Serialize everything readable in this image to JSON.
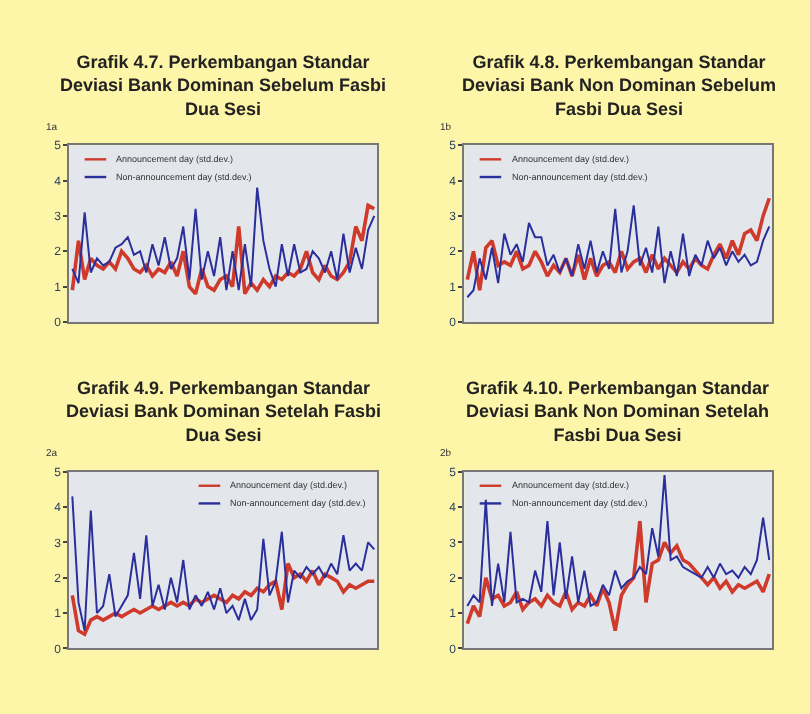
{
  "chart_data": [
    {
      "type": "line",
      "title": "Grafik 4.7. Perkembangan Standar Deviasi Bank Dominan Sebelum Fasbi Dua Sesi",
      "ylabel": "1a",
      "categories": [
        null,
        null,
        null,
        null,
        null,
        null,
        null,
        null,
        null,
        null,
        null,
        null,
        null,
        null,
        null,
        null,
        null,
        null,
        null,
        null,
        null,
        null,
        null,
        null,
        null,
        null,
        null,
        null,
        null,
        null,
        null,
        null,
        null,
        null,
        null,
        null,
        null,
        null,
        null,
        null,
        null,
        null,
        null,
        null,
        null,
        null,
        null,
        null,
        null,
        null
      ],
      "ylim": [
        0,
        5
      ],
      "yticks": [
        0,
        1,
        2,
        3,
        4,
        5
      ],
      "legend": "top left",
      "grid": false,
      "marker": "none",
      "series": [
        {
          "name": "Announcement day (std.dev.)",
          "color": "#d03a2a",
          "values": [
            0.9,
            2.3,
            1.2,
            1.8,
            1.6,
            1.5,
            1.7,
            1.5,
            2.0,
            1.8,
            1.5,
            1.4,
            1.6,
            1.3,
            1.5,
            1.4,
            1.7,
            1.3,
            2.0,
            1.0,
            0.8,
            1.5,
            1.0,
            0.9,
            1.2,
            1.3,
            1.0,
            2.7,
            0.8,
            1.1,
            0.9,
            1.2,
            1.0,
            1.3,
            1.2,
            1.4,
            1.3,
            1.5,
            2.0,
            1.4,
            1.2,
            1.6,
            1.3,
            1.2,
            1.4,
            1.7,
            2.7,
            2.3,
            3.3,
            3.2
          ]
        },
        {
          "name": "Non-announcement day (std.dev.)",
          "color": "#2b2f9c",
          "values": [
            1.5,
            1.1,
            3.1,
            1.4,
            1.8,
            1.6,
            1.7,
            2.1,
            2.2,
            2.4,
            1.9,
            2.0,
            1.4,
            2.2,
            1.6,
            2.4,
            1.5,
            1.8,
            2.7,
            1.2,
            3.2,
            1.2,
            2.0,
            1.3,
            2.4,
            0.9,
            2.0,
            0.9,
            2.2,
            1.0,
            3.8,
            2.3,
            1.5,
            1.0,
            2.2,
            1.3,
            2.2,
            1.4,
            1.5,
            2.0,
            1.8,
            1.4,
            2.0,
            1.2,
            2.5,
            1.4,
            2.1,
            1.5,
            2.6,
            3.0
          ]
        }
      ]
    },
    {
      "type": "line",
      "title": "Grafik 4.8. Perkembangan Standar Deviasi Bank Non Dominan Sebelum Fasbi Dua Sesi",
      "ylabel": "1b",
      "categories": [
        null,
        null,
        null,
        null,
        null,
        null,
        null,
        null,
        null,
        null,
        null,
        null,
        null,
        null,
        null,
        null,
        null,
        null,
        null,
        null,
        null,
        null,
        null,
        null,
        null,
        null,
        null,
        null,
        null,
        null,
        null,
        null,
        null,
        null,
        null,
        null,
        null,
        null,
        null,
        null,
        null,
        null,
        null,
        null,
        null,
        null,
        null,
        null,
        null,
        null
      ],
      "ylim": [
        0,
        5
      ],
      "yticks": [
        0,
        1,
        2,
        3,
        4,
        5
      ],
      "legend": "top left",
      "grid": false,
      "marker": "none",
      "series": [
        {
          "name": "Announcement day (std.dev.)",
          "color": "#d03a2a",
          "values": [
            1.2,
            2.0,
            0.9,
            2.1,
            2.3,
            1.6,
            1.7,
            1.6,
            2.0,
            1.5,
            1.6,
            2.0,
            1.7,
            1.3,
            1.6,
            1.4,
            1.8,
            1.3,
            1.9,
            1.2,
            1.8,
            1.3,
            1.6,
            1.7,
            1.4,
            2.0,
            1.5,
            1.7,
            1.8,
            1.4,
            1.9,
            1.5,
            1.8,
            1.6,
            1.4,
            1.7,
            1.5,
            1.8,
            1.6,
            1.5,
            1.9,
            2.2,
            1.8,
            2.3,
            1.9,
            2.5,
            2.6,
            2.3,
            3.0,
            3.5
          ]
        },
        {
          "name": "Non-announcement day (std.dev.)",
          "color": "#2b2f9c",
          "values": [
            0.7,
            0.9,
            1.8,
            1.2,
            2.1,
            1.1,
            2.5,
            1.9,
            2.2,
            1.7,
            2.8,
            2.4,
            2.4,
            1.6,
            1.9,
            1.4,
            1.8,
            1.3,
            2.2,
            1.5,
            2.3,
            1.4,
            2.0,
            1.5,
            3.2,
            1.4,
            2.0,
            3.3,
            1.6,
            2.1,
            1.4,
            2.7,
            1.1,
            2.0,
            1.3,
            2.5,
            1.3,
            1.9,
            1.6,
            2.3,
            1.8,
            2.1,
            1.6,
            2.0,
            1.7,
            1.9,
            1.6,
            1.7,
            2.3,
            2.7
          ]
        }
      ]
    },
    {
      "type": "line",
      "title": "Grafik 4.9. Perkembangan Standar Deviasi Bank Dominan Setelah Fasbi Dua Sesi",
      "ylabel": "2a",
      "categories": [
        null,
        null,
        null,
        null,
        null,
        null,
        null,
        null,
        null,
        null,
        null,
        null,
        null,
        null,
        null,
        null,
        null,
        null,
        null,
        null,
        null,
        null,
        null,
        null,
        null,
        null,
        null,
        null,
        null,
        null,
        null,
        null,
        null,
        null,
        null,
        null,
        null,
        null,
        null,
        null,
        null,
        null,
        null,
        null,
        null,
        null,
        null,
        null,
        null,
        null
      ],
      "ylim": [
        0,
        5
      ],
      "yticks": [
        0,
        1,
        2,
        3,
        4,
        5
      ],
      "legend": "top right",
      "grid": false,
      "marker": "none",
      "series": [
        {
          "name": "Announcement day (std.dev.)",
          "color": "#d03a2a",
          "values": [
            1.5,
            0.5,
            0.4,
            0.8,
            0.9,
            0.8,
            0.9,
            1.0,
            0.9,
            1.0,
            1.1,
            1.0,
            1.1,
            1.2,
            1.1,
            1.2,
            1.3,
            1.2,
            1.3,
            1.2,
            1.4,
            1.3,
            1.4,
            1.5,
            1.4,
            1.3,
            1.5,
            1.4,
            1.6,
            1.5,
            1.7,
            1.6,
            1.8,
            1.9,
            1.1,
            2.4,
            2.0,
            2.1,
            1.9,
            2.2,
            1.8,
            2.1,
            2.0,
            1.9,
            1.6,
            1.8,
            1.7,
            1.8,
            1.9,
            1.9
          ]
        },
        {
          "name": "Non-announcement day (std.dev.)",
          "color": "#2b2f9c",
          "values": [
            4.3,
            1.3,
            0.5,
            3.9,
            1.0,
            1.2,
            2.1,
            0.9,
            1.2,
            1.5,
            2.7,
            1.4,
            3.2,
            1.2,
            1.8,
            1.1,
            2.0,
            1.3,
            2.5,
            1.1,
            1.5,
            1.2,
            1.6,
            1.1,
            1.7,
            1.0,
            1.2,
            0.8,
            1.4,
            0.8,
            1.1,
            3.1,
            1.5,
            1.9,
            3.3,
            1.3,
            2.2,
            2.0,
            2.3,
            2.1,
            2.3,
            2.0,
            2.4,
            2.1,
            3.2,
            2.2,
            2.4,
            2.2,
            3.0,
            2.8
          ]
        }
      ]
    },
    {
      "type": "line",
      "title": "Grafik 4.10. Perkembangan Standar Deviasi Bank Non Dominan Setelah Fasbi Dua Sesi",
      "ylabel": "2b",
      "categories": [
        null,
        null,
        null,
        null,
        null,
        null,
        null,
        null,
        null,
        null,
        null,
        null,
        null,
        null,
        null,
        null,
        null,
        null,
        null,
        null,
        null,
        null,
        null,
        null,
        null,
        null,
        null,
        null,
        null,
        null,
        null,
        null,
        null,
        null,
        null,
        null,
        null,
        null,
        null,
        null,
        null,
        null,
        null,
        null,
        null,
        null,
        null,
        null,
        null,
        null
      ],
      "ylim": [
        0,
        5
      ],
      "yticks": [
        0,
        1,
        2,
        3,
        4,
        5
      ],
      "legend": "top left",
      "grid": false,
      "marker": "none",
      "series": [
        {
          "name": "Announcement day (std.dev.)",
          "color": "#d03a2a",
          "values": [
            0.7,
            1.2,
            0.9,
            2.0,
            1.4,
            1.5,
            1.2,
            1.3,
            1.6,
            1.1,
            1.3,
            1.4,
            1.2,
            1.5,
            1.3,
            1.2,
            1.6,
            1.1,
            1.3,
            1.2,
            1.5,
            1.2,
            1.7,
            1.3,
            0.5,
            1.5,
            1.8,
            2.0,
            3.6,
            1.3,
            2.4,
            2.5,
            3.0,
            2.7,
            2.9,
            2.5,
            2.4,
            2.2,
            2.0,
            1.8,
            2.0,
            1.7,
            1.9,
            1.6,
            1.8,
            1.7,
            1.8,
            1.9,
            1.6,
            2.1
          ]
        },
        {
          "name": "Non-announcement day (std.dev.)",
          "color": "#2b2f9c",
          "values": [
            1.2,
            1.5,
            1.3,
            4.2,
            1.2,
            2.4,
            1.3,
            3.3,
            1.3,
            1.4,
            1.3,
            2.2,
            1.6,
            3.6,
            1.5,
            3.0,
            1.4,
            2.6,
            1.3,
            2.2,
            1.2,
            1.3,
            1.8,
            1.5,
            2.2,
            1.7,
            1.9,
            2.0,
            2.3,
            2.1,
            3.4,
            2.6,
            4.9,
            2.5,
            2.6,
            2.3,
            2.2,
            2.1,
            2.0,
            2.3,
            2.0,
            2.4,
            2.1,
            2.2,
            2.0,
            2.3,
            2.1,
            2.5,
            3.7,
            2.5
          ]
        }
      ]
    }
  ]
}
